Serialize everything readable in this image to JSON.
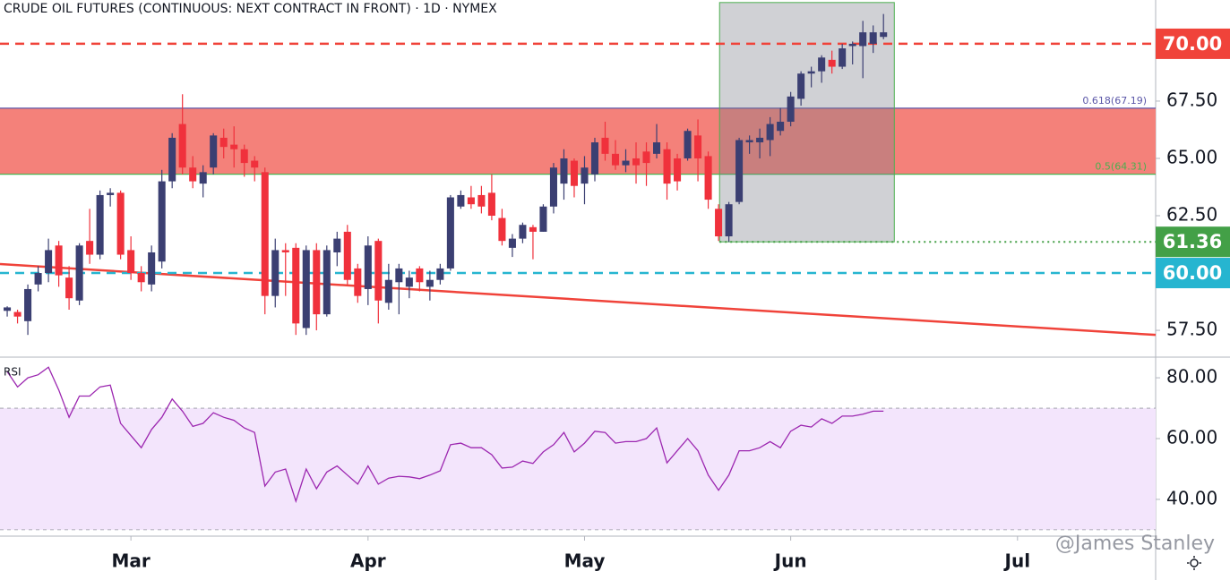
{
  "chart_data": [
    {
      "type": "candlestick",
      "title": "CRUDE OIL FUTURES (CONTINUOUS: NEXT CONTRACT IN FRONT) · 1D · NYMEX",
      "watermark": "@James Stanley",
      "xlim": [
        -0.7,
        111.4
      ],
      "xticks": [
        {
          "value": 12,
          "label": "Mar"
        },
        {
          "value": 35,
          "label": "Apr"
        },
        {
          "value": 56,
          "label": "May"
        },
        {
          "value": 76,
          "label": "Jun"
        },
        {
          "value": 98,
          "label": "Jul"
        }
      ],
      "ylim": [
        56.37,
        71.91
      ],
      "yticks": [
        {
          "value": 57.5,
          "label": "57.50"
        },
        {
          "value": 62.5,
          "label": "62.50"
        },
        {
          "value": 65,
          "label": "65.00"
        },
        {
          "value": 67.5,
          "label": "67.50"
        }
      ],
      "up_color": "#3b3f72",
      "down_color": "#f0313c",
      "open": [
        58.35,
        58.3,
        57.9,
        59.5,
        60.0,
        61.2,
        59.8,
        58.8,
        61.4,
        60.8,
        63.4,
        63.5,
        61.0,
        60.0,
        59.5,
        60.5,
        64.0,
        66.5,
        64.6,
        63.9,
        64.6,
        65.9,
        65.6,
        65.4,
        64.9,
        64.4,
        59.0,
        61.0,
        61.1,
        57.6,
        61.0,
        58.2,
        60.9,
        61.8,
        60.2,
        59.3,
        61.4,
        58.7,
        59.6,
        59.4,
        60.2,
        59.4,
        59.7,
        60.2,
        62.9,
        63.3,
        63.4,
        63.5,
        62.4,
        61.1,
        61.5,
        62.0,
        61.8,
        62.9,
        63.9,
        64.9,
        63.9,
        64.3,
        65.9,
        65.2,
        64.7,
        65.0,
        65.3,
        65.2,
        65.4,
        65.0,
        65.0,
        66.0,
        65.1,
        62.8,
        61.6,
        63.1,
        65.7,
        65.7,
        65.8,
        66.2,
        66.6,
        67.6,
        68.7,
        68.8,
        69.3,
        69.0,
        69.9,
        69.9,
        70.0,
        70.3
      ],
      "high": [
        58.55,
        58.4,
        59.5,
        60.3,
        61.5,
        61.4,
        60.3,
        61.3,
        62.8,
        63.6,
        63.7,
        63.6,
        61.6,
        60.3,
        61.2,
        64.5,
        66.1,
        67.8,
        65.1,
        64.7,
        66.1,
        66.3,
        66.4,
        65.6,
        65.1,
        64.6,
        61.5,
        61.3,
        61.3,
        61.2,
        61.3,
        61.2,
        61.8,
        62.1,
        60.4,
        61.6,
        61.5,
        60.4,
        60.4,
        60.1,
        60.3,
        60.1,
        60.4,
        63.4,
        63.6,
        63.8,
        63.8,
        64.3,
        62.8,
        61.7,
        62.2,
        62.1,
        63.0,
        64.8,
        65.4,
        65.0,
        65.1,
        65.9,
        66.6,
        65.8,
        65.4,
        65.7,
        65.7,
        66.5,
        65.7,
        65.2,
        66.3,
        66.7,
        65.3,
        63.0,
        63.1,
        65.9,
        66.0,
        66.3,
        66.8,
        67.2,
        67.9,
        68.8,
        69.0,
        69.5,
        69.7,
        70.0,
        70.1,
        71.0,
        70.8,
        71.3
      ],
      "low": [
        58.1,
        57.8,
        57.3,
        59.2,
        59.6,
        59.4,
        58.4,
        58.6,
        60.4,
        60.6,
        62.9,
        60.6,
        59.7,
        59.2,
        59.2,
        60.2,
        63.7,
        64.3,
        63.7,
        63.3,
        64.3,
        65.0,
        64.6,
        64.2,
        64.0,
        58.2,
        58.5,
        59.0,
        57.3,
        57.3,
        57.5,
        58.1,
        60.3,
        59.5,
        58.7,
        58.6,
        57.8,
        58.4,
        58.2,
        58.9,
        59.2,
        58.8,
        59.5,
        60.1,
        62.8,
        62.8,
        62.6,
        62.3,
        61.2,
        60.7,
        61.3,
        60.6,
        61.8,
        62.6,
        63.2,
        63.3,
        63.0,
        64.0,
        64.9,
        64.5,
        64.4,
        63.9,
        63.8,
        65.0,
        63.2,
        63.6,
        64.9,
        64.0,
        62.8,
        61.4,
        61.36,
        63.0,
        65.2,
        65.0,
        65.1,
        66.0,
        66.4,
        67.3,
        68.1,
        68.3,
        68.7,
        68.9,
        69.1,
        68.5,
        69.6,
        70.2
      ],
      "close": [
        58.5,
        58.1,
        59.3,
        60.0,
        61.0,
        59.9,
        58.9,
        61.2,
        60.8,
        63.4,
        63.5,
        60.8,
        60.0,
        59.6,
        60.9,
        64.0,
        65.9,
        64.6,
        64.0,
        64.4,
        66.0,
        65.5,
        65.4,
        64.8,
        64.6,
        59.0,
        61.0,
        60.9,
        57.8,
        61.0,
        58.2,
        61.0,
        61.5,
        59.7,
        59.0,
        61.2,
        58.8,
        59.7,
        60.2,
        59.8,
        59.6,
        59.7,
        60.2,
        63.3,
        63.4,
        63.0,
        62.9,
        62.5,
        61.4,
        61.5,
        62.1,
        61.8,
        62.9,
        64.6,
        65.0,
        63.8,
        64.6,
        65.7,
        65.2,
        64.7,
        64.9,
        64.7,
        64.8,
        65.7,
        63.9,
        64.0,
        66.2,
        65.0,
        63.2,
        61.6,
        63.0,
        65.8,
        65.8,
        65.9,
        66.5,
        66.6,
        67.7,
        68.7,
        68.8,
        69.4,
        69.0,
        69.8,
        70.0,
        70.5,
        70.5,
        70.5
      ],
      "zone": {
        "range": [
          64.31,
          67.19
        ],
        "color": "#f4817a"
      },
      "fib_levels": [
        {
          "value": 67.19,
          "label": "0.618(67.19)",
          "color": "#5b57a8"
        },
        {
          "value": 64.31,
          "label": "0.5(64.31)",
          "color": "#4caf50"
        }
      ],
      "levels": [
        {
          "value": 70,
          "label": "70.00",
          "color": "#f0433a",
          "style": "dashed"
        },
        {
          "value": 61.36,
          "label": "61.36",
          "color": "#43a047",
          "style": "dotted"
        },
        {
          "value": 60,
          "label": "60.00",
          "color": "#26b5d0",
          "style": "dashed"
        }
      ],
      "trendline": {
        "x": [
          -0.7,
          111.4
        ],
        "y": [
          60.39,
          57.3
        ],
        "color": "#f0433a"
      },
      "box": {
        "x": [
          69.1,
          86.05
        ],
        "y": [
          61.36,
          71.8
        ],
        "color": "#787b86",
        "border": "#4caf50"
      }
    },
    {
      "type": "line",
      "title": "RSI",
      "color": "#9c27b0",
      "values": [
        82,
        77,
        80,
        81,
        83.5,
        76,
        67,
        74,
        74,
        77,
        77.6,
        65,
        61,
        57,
        63,
        67,
        73,
        69,
        64,
        65,
        68.5,
        67,
        66,
        63.5,
        62,
        44.4,
        49,
        50,
        39.4,
        50,
        43.5,
        49,
        51,
        48,
        45,
        51,
        45,
        47,
        47.6,
        47.4,
        46.8,
        48,
        49.4,
        58,
        58.5,
        57,
        57,
        54.7,
        50.3,
        50.6,
        52.6,
        51.8,
        55.6,
        58,
        62,
        55.6,
        58.5,
        62.4,
        62,
        58.5,
        59,
        59,
        60,
        63.5,
        52,
        56,
        60,
        56,
        48,
        43,
        48,
        56,
        56,
        57,
        59,
        57,
        62.4,
        64.4,
        63.8,
        66.5,
        65,
        67.4,
        67.4,
        68,
        69,
        69
      ],
      "ylim": [
        28.2,
        86.5
      ],
      "yticks": [
        {
          "value": 40,
          "label": "40.00"
        },
        {
          "value": 60,
          "label": "60.00"
        },
        {
          "value": 80,
          "label": "80.00"
        }
      ],
      "band": [
        30,
        70
      ],
      "band_color": "#f3e5fc"
    }
  ]
}
